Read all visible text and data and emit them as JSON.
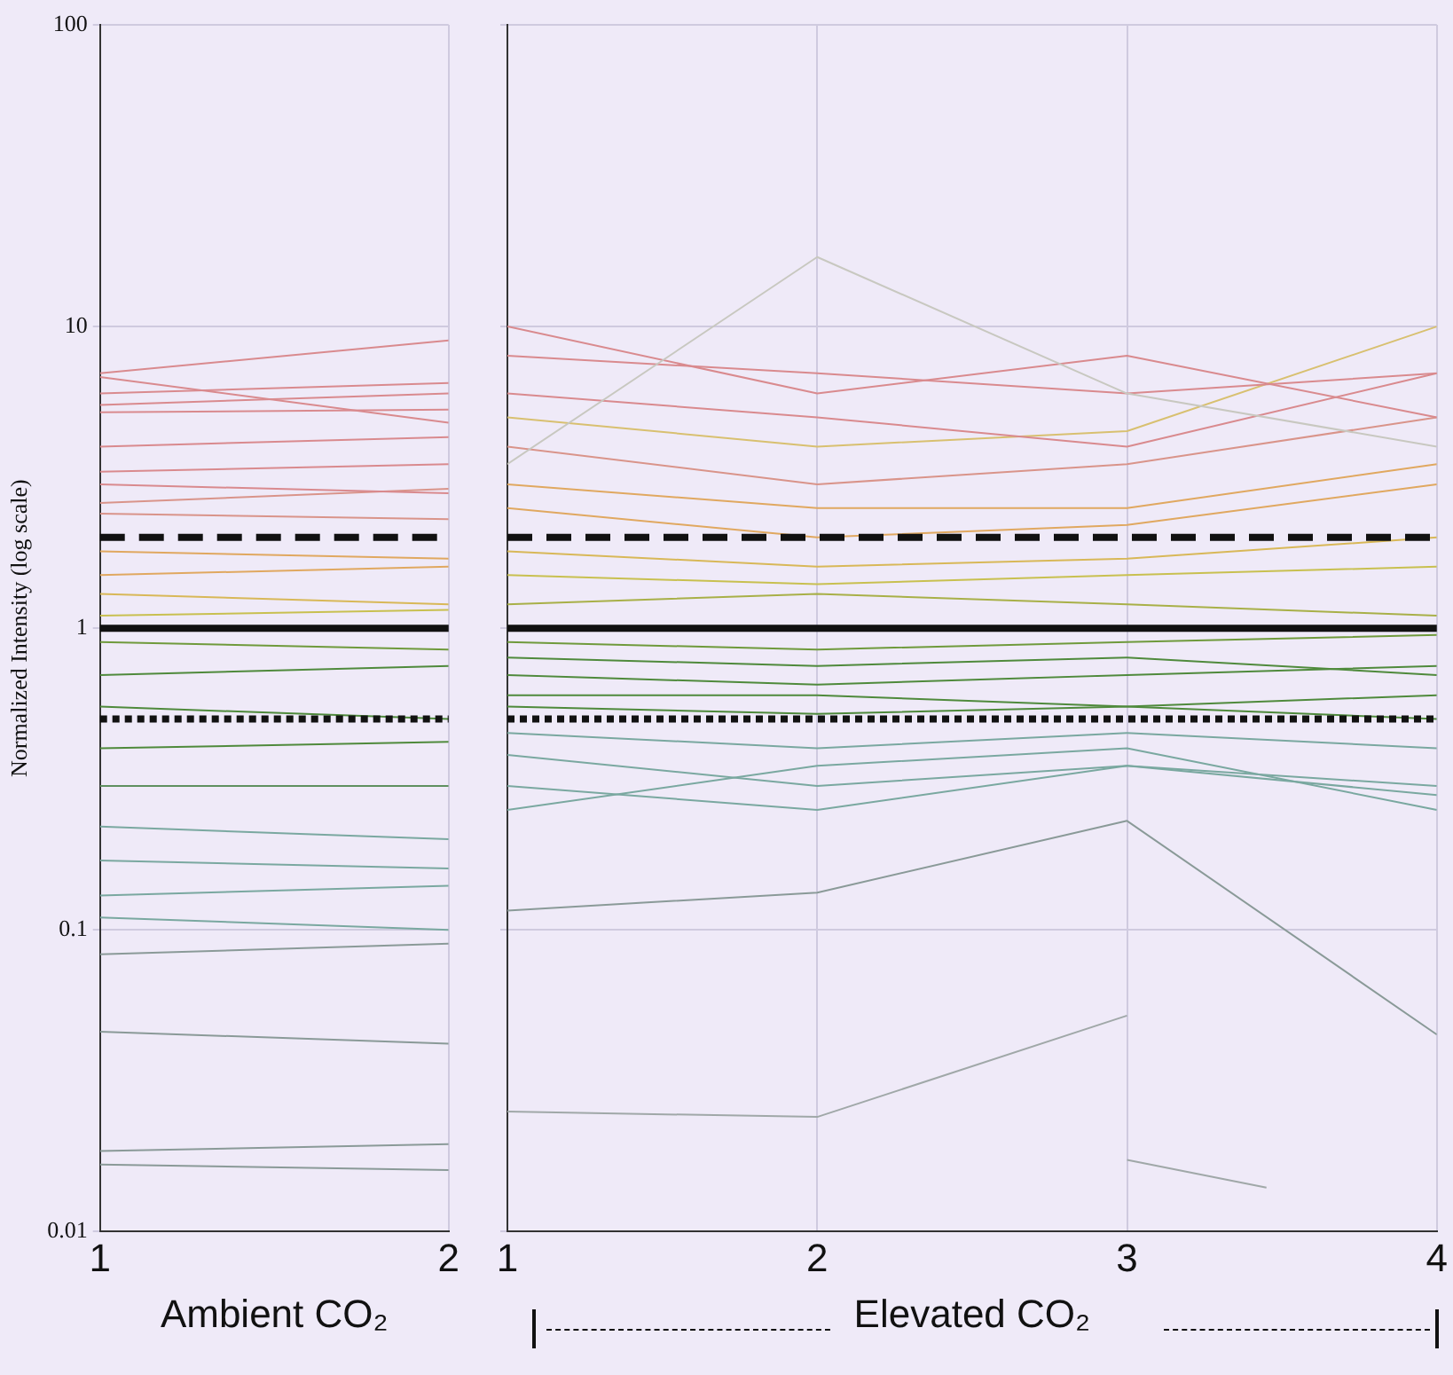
{
  "chart_data": [
    {
      "type": "line",
      "ylabel": "Normalized Intensity (log scale)",
      "xlabel": "Ambient CO₂",
      "x": [
        1,
        2
      ],
      "xlim": [
        1,
        2
      ],
      "xticks": [
        1,
        2
      ],
      "ylim": [
        0.01,
        100
      ],
      "yticks": [
        0.01,
        0.1,
        1,
        10,
        100
      ],
      "log": "y",
      "grid": true,
      "marker": "none",
      "ref_lines": [
        {
          "axis": "y",
          "value": 2,
          "color": "#111111",
          "line_style": "dashed"
        },
        {
          "axis": "y",
          "value": 1,
          "color": "#111111",
          "line_style": "solid"
        },
        {
          "axis": "y",
          "value": 0.5,
          "color": "#111111",
          "line_style": "dotted"
        }
      ],
      "series": [
        {
          "color": "#d98a8e",
          "values": [
            7,
            9
          ]
        },
        {
          "color": "#d98a8e",
          "values": [
            6.8,
            4.8
          ]
        },
        {
          "color": "#d98a8e",
          "values": [
            6,
            6.5
          ]
        },
        {
          "color": "#d98a8e",
          "values": [
            5.5,
            6
          ]
        },
        {
          "color": "#d98a8e",
          "values": [
            5.2,
            5.3
          ]
        },
        {
          "color": "#d98a8e",
          "values": [
            4,
            4.3
          ]
        },
        {
          "color": "#d98a8e",
          "values": [
            3.3,
            3.5
          ]
        },
        {
          "color": "#d98a8e",
          "values": [
            3,
            2.8
          ]
        },
        {
          "color": "#d9948a",
          "values": [
            2.6,
            2.9
          ]
        },
        {
          "color": "#d9948a",
          "values": [
            2.4,
            2.3
          ]
        },
        {
          "color": "#e0a860",
          "values": [
            1.8,
            1.7
          ]
        },
        {
          "color": "#e0a860",
          "values": [
            1.5,
            1.6
          ]
        },
        {
          "color": "#d8b858",
          "values": [
            1.3,
            1.2
          ]
        },
        {
          "color": "#c8c050",
          "values": [
            1.1,
            1.15
          ]
        },
        {
          "color": "#6f9a3c",
          "values": [
            0.9,
            0.85
          ]
        },
        {
          "color": "#4f8a3c",
          "values": [
            0.7,
            0.75
          ]
        },
        {
          "color": "#4f8a3c",
          "values": [
            0.55,
            0.5
          ]
        },
        {
          "color": "#4f8a3c",
          "values": [
            0.4,
            0.42
          ]
        },
        {
          "color": "#5f9060",
          "values": [
            0.3,
            0.3
          ]
        },
        {
          "color": "#7aa8a0",
          "values": [
            0.22,
            0.2
          ]
        },
        {
          "color": "#7aa8a0",
          "values": [
            0.17,
            0.16
          ]
        },
        {
          "color": "#7aa8a0",
          "values": [
            0.13,
            0.14
          ]
        },
        {
          "color": "#7aa8a0",
          "values": [
            0.11,
            0.1
          ]
        },
        {
          "color": "#8a9a98",
          "values": [
            0.083,
            0.09
          ]
        },
        {
          "color": "#8a9a98",
          "values": [
            0.046,
            0.042
          ]
        },
        {
          "color": "#8a9a98",
          "values": [
            0.0185,
            0.0195
          ]
        },
        {
          "color": "#8a9a98",
          "values": [
            0.0167,
            0.016
          ]
        }
      ]
    },
    {
      "type": "line",
      "xlabel": "Elevated CO₂",
      "x": [
        1,
        2,
        3,
        4
      ],
      "xlim": [
        1,
        4
      ],
      "xticks": [
        1,
        2,
        3,
        4
      ],
      "ylim": [
        0.01,
        100
      ],
      "yticks": [
        0.01,
        0.1,
        1,
        10,
        100
      ],
      "log": "y",
      "grid": true,
      "marker": "none",
      "tick_labels": "x",
      "ref_lines": [
        {
          "axis": "y",
          "value": 2,
          "color": "#111111",
          "line_style": "dashed"
        },
        {
          "axis": "y",
          "value": 1,
          "color": "#111111",
          "line_style": "solid"
        },
        {
          "axis": "y",
          "value": 0.5,
          "color": "#111111",
          "line_style": "dotted"
        }
      ],
      "series": [
        {
          "color": "#c8c8c0",
          "values": [
            3.5,
            17,
            6,
            4
          ]
        },
        {
          "color": "#d98a8e",
          "values": [
            10,
            6,
            8,
            5
          ]
        },
        {
          "color": "#d98a8e",
          "values": [
            8,
            7,
            6,
            7
          ]
        },
        {
          "color": "#d98a8e",
          "values": [
            6,
            5,
            4,
            7
          ]
        },
        {
          "color": "#d8c070",
          "values": [
            5,
            4,
            4.5,
            10
          ]
        },
        {
          "color": "#d9948a",
          "values": [
            4,
            3,
            3.5,
            5
          ]
        },
        {
          "color": "#e0a860",
          "values": [
            3,
            2.5,
            2.5,
            3.5
          ]
        },
        {
          "color": "#e0a860",
          "values": [
            2.5,
            2,
            2.2,
            3
          ]
        },
        {
          "color": "#d8b858",
          "values": [
            1.8,
            1.6,
            1.7,
            2
          ]
        },
        {
          "color": "#c8c050",
          "values": [
            1.5,
            1.4,
            1.5,
            1.6
          ]
        },
        {
          "color": "#a8b048",
          "values": [
            1.2,
            1.3,
            1.2,
            1.1
          ]
        },
        {
          "color": "#6f9a3c",
          "values": [
            0.9,
            0.85,
            0.9,
            0.95
          ]
        },
        {
          "color": "#4f8a3c",
          "values": [
            0.8,
            0.75,
            0.8,
            0.7
          ]
        },
        {
          "color": "#4f8a3c",
          "values": [
            0.7,
            0.65,
            0.7,
            0.75
          ]
        },
        {
          "color": "#4f8a3c",
          "values": [
            0.6,
            0.6,
            0.55,
            0.6
          ]
        },
        {
          "color": "#4f8a3c",
          "values": [
            0.55,
            0.52,
            0.55,
            0.5
          ]
        },
        {
          "color": "#7aa8a0",
          "values": [
            0.45,
            0.4,
            0.45,
            0.4
          ]
        },
        {
          "color": "#7aa8a0",
          "values": [
            0.38,
            0.3,
            0.35,
            0.28
          ]
        },
        {
          "color": "#7aa8a0",
          "values": [
            0.3,
            0.25,
            0.35,
            0.3
          ]
        },
        {
          "color": "#7aa8a0",
          "values": [
            0.25,
            0.35,
            0.4,
            0.25
          ]
        },
        {
          "color": "#8a9a98",
          "values": [
            0.116,
            0.133,
            0.23,
            0.045
          ]
        },
        {
          "color": "#a0a8a8",
          "values": [
            0.025,
            0.024,
            0.052,
            null
          ]
        },
        {
          "color": "#a0a8a8",
          "x": [
            3,
            3.45
          ],
          "values": [
            0.0173,
            0.014
          ]
        }
      ]
    }
  ]
}
